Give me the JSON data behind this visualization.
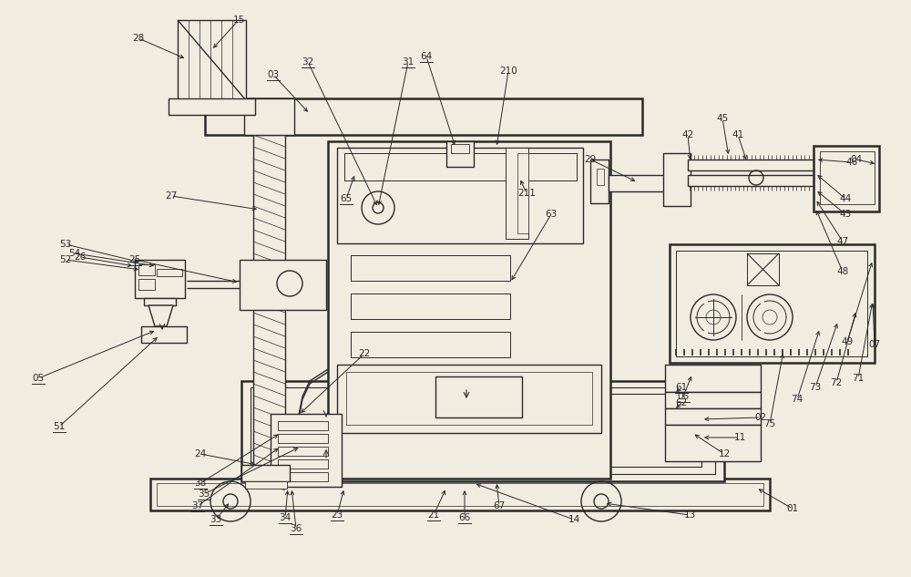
{
  "bg_color": "#f0ece0",
  "line_color": "#2a2a2a",
  "lw": 1.0,
  "tlw": 1.8,
  "fs": 7.5
}
